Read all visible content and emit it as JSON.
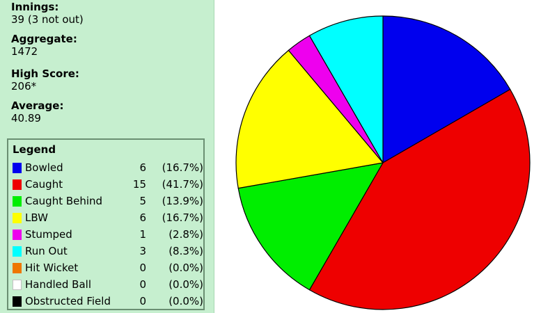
{
  "stats": [
    {
      "label": "Innings:",
      "value": "39 (3 not out)"
    },
    {
      "label": "Aggregate:",
      "value": "1472"
    },
    {
      "label": "High Score:",
      "value": "206*"
    },
    {
      "label": "Average:",
      "value": "40.89"
    }
  ],
  "legend": {
    "title": "Legend",
    "items": [
      {
        "label": "Bowled",
        "count": "6",
        "pct": "(16.7%)",
        "color": "#0000ee"
      },
      {
        "label": "Caught",
        "count": "15",
        "pct": "(41.7%)",
        "color": "#ee0000"
      },
      {
        "label": "Caught Behind",
        "count": "5",
        "pct": "(13.9%)",
        "color": "#00ee00"
      },
      {
        "label": "LBW",
        "count": "6",
        "pct": "(16.7%)",
        "color": "#ffff00"
      },
      {
        "label": "Stumped",
        "count": "1",
        "pct": "(2.8%)",
        "color": "#ee00ee"
      },
      {
        "label": "Run Out",
        "count": "3",
        "pct": "(8.3%)",
        "color": "#00ffff"
      },
      {
        "label": "Hit Wicket",
        "count": "0",
        "pct": "(0.0%)",
        "color": "#ee7700"
      },
      {
        "label": "Handled Ball",
        "count": "0",
        "pct": "(0.0%)",
        "color": "#ffffff"
      },
      {
        "label": "Obstructed Field",
        "count": "0",
        "pct": "(0.0%)",
        "color": "#000000"
      }
    ]
  },
  "chart_data": {
    "type": "pie",
    "categories": [
      "Bowled",
      "Caught",
      "Caught Behind",
      "LBW",
      "Stumped",
      "Run Out",
      "Hit Wicket",
      "Handled Ball",
      "Obstructed Field"
    ],
    "values": [
      6,
      15,
      5,
      6,
      1,
      3,
      0,
      0,
      0
    ],
    "colors": [
      "#0000ee",
      "#ee0000",
      "#00ee00",
      "#ffff00",
      "#ee00ee",
      "#00ffff",
      "#ee7700",
      "#ffffff",
      "#000000"
    ],
    "start": "12 o'clock",
    "direction": "clockwise"
  }
}
